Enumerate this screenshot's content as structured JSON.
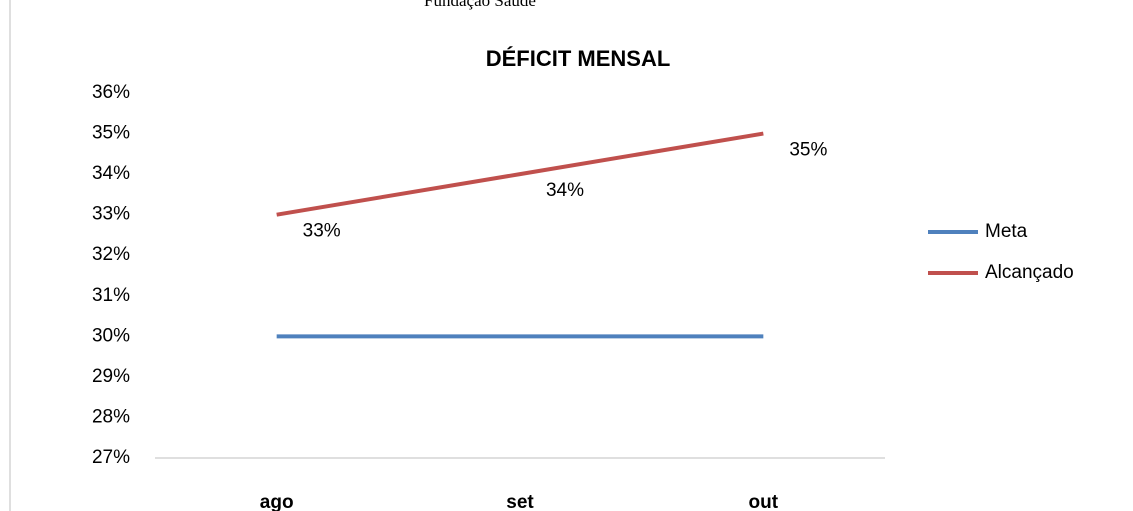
{
  "page_header": "Fundação Saúde",
  "chart_data": {
    "type": "line",
    "title": "DÉFICIT MENSAL",
    "categories": [
      "ago",
      "set",
      "out"
    ],
    "series": [
      {
        "name": "Meta",
        "color": "#4f81bd",
        "values": [
          30,
          30,
          30
        ]
      },
      {
        "name": "Alcançado",
        "color": "#c0504d",
        "values": [
          33,
          34,
          35
        ],
        "value_labels": [
          "33%",
          "34%",
          "35%"
        ]
      }
    ],
    "ylim": [
      27,
      36
    ],
    "yticks": [
      {
        "value": 27,
        "label": "27%"
      },
      {
        "value": 28,
        "label": "28%"
      },
      {
        "value": 29,
        "label": "29%"
      },
      {
        "value": 30,
        "label": "30%"
      },
      {
        "value": 31,
        "label": "31%"
      },
      {
        "value": 32,
        "label": "32%"
      },
      {
        "value": 33,
        "label": "33%"
      },
      {
        "value": 34,
        "label": "34%"
      },
      {
        "value": 35,
        "label": "35%"
      },
      {
        "value": 36,
        "label": "36%"
      }
    ],
    "grid": false,
    "legend": "right"
  }
}
